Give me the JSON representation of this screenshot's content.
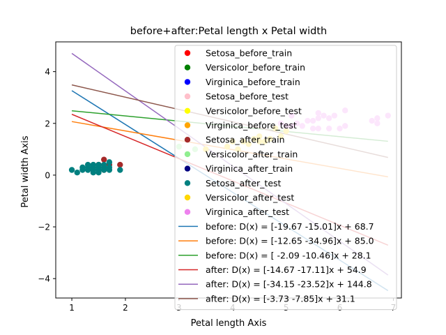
{
  "chart_data": {
    "type": "scatter",
    "title": "before+after:Petal length x Petal width",
    "xlabel": "Petal length Axis",
    "ylabel": "Petal width Axis",
    "xlim": [
      0.7,
      7.15
    ],
    "ylim": [
      -4.75,
      5.15
    ],
    "xticks": [
      1,
      2,
      3,
      4,
      5,
      6,
      7
    ],
    "yticks": [
      -4,
      -2,
      0,
      2,
      4
    ],
    "grid": false,
    "legend_position": "top-right",
    "scatter_series": [
      {
        "name": "Setosa_before_train",
        "color": "#ff0000",
        "points": []
      },
      {
        "name": "Versicolor_before_train",
        "color": "#008000",
        "points": []
      },
      {
        "name": "Virginica_before_train",
        "color": "#0000ff",
        "points": []
      },
      {
        "name": "Setosa_before_test",
        "color": "#ffc0cb",
        "points": []
      },
      {
        "name": "Versicolor_before_test",
        "color": "#ffff00",
        "points": []
      },
      {
        "name": "Virginica_before_test",
        "color": "#ffa500",
        "points": []
      },
      {
        "name": "Setosa_after_train",
        "color": "#a52a2a",
        "points": [
          [
            1.6,
            0.6
          ],
          [
            1.9,
            0.4
          ],
          [
            1.5,
            0.4
          ],
          [
            1.7,
            0.4
          ],
          [
            1.6,
            0.2
          ],
          [
            1.4,
            0.3
          ]
        ]
      },
      {
        "name": "Versicolor_after_train",
        "color": "#90ee90",
        "points": [
          [
            3.0,
            1.1
          ],
          [
            3.3,
            1.0
          ]
        ]
      },
      {
        "name": "Virginica_after_train",
        "color": "#000080",
        "points": []
      },
      {
        "name": "Setosa_after_test",
        "color": "#008080",
        "points": [
          [
            1.0,
            0.2
          ],
          [
            1.1,
            0.1
          ],
          [
            1.2,
            0.2
          ],
          [
            1.3,
            0.2
          ],
          [
            1.3,
            0.4
          ],
          [
            1.3,
            0.3
          ],
          [
            1.4,
            0.2
          ],
          [
            1.4,
            0.1
          ],
          [
            1.4,
            0.3
          ],
          [
            1.5,
            0.2
          ],
          [
            1.5,
            0.1
          ],
          [
            1.5,
            0.4
          ],
          [
            1.5,
            0.3
          ],
          [
            1.6,
            0.2
          ],
          [
            1.6,
            0.4
          ],
          [
            1.7,
            0.2
          ],
          [
            1.7,
            0.3
          ],
          [
            1.7,
            0.5
          ],
          [
            1.9,
            0.2
          ],
          [
            1.2,
            0.3
          ],
          [
            1.4,
            0.4
          ],
          [
            1.6,
            0.3
          ]
        ]
      },
      {
        "name": "Versicolor_after_test",
        "color": "#ffd700",
        "points": [
          [
            3.5,
            1.0
          ],
          [
            3.9,
            1.1
          ],
          [
            4.0,
            1.3
          ],
          [
            4.1,
            1.0
          ],
          [
            4.2,
            1.3
          ],
          [
            4.4,
            1.4
          ],
          [
            4.5,
            1.5
          ],
          [
            4.6,
            1.3
          ],
          [
            4.7,
            1.4
          ],
          [
            4.8,
            1.8
          ],
          [
            4.9,
            1.5
          ],
          [
            5.0,
            1.7
          ],
          [
            4.3,
            1.2
          ],
          [
            4.5,
            1.3
          ]
        ]
      },
      {
        "name": "Virginica_after_test",
        "color": "#ee82ee",
        "points": [
          [
            4.9,
            2.0
          ],
          [
            5.0,
            1.9
          ],
          [
            5.1,
            2.3
          ],
          [
            5.2,
            2.0
          ],
          [
            5.3,
            1.9
          ],
          [
            5.5,
            2.1
          ],
          [
            5.6,
            2.4
          ],
          [
            5.6,
            1.8
          ],
          [
            5.7,
            2.3
          ],
          [
            5.8,
            1.8
          ],
          [
            5.8,
            2.2
          ],
          [
            5.9,
            2.3
          ],
          [
            6.0,
            1.8
          ],
          [
            6.1,
            2.5
          ],
          [
            6.6,
            2.1
          ],
          [
            6.7,
            2.2
          ],
          [
            6.9,
            2.3
          ],
          [
            5.4,
            2.1
          ],
          [
            6.1,
            1.9
          ],
          [
            5.5,
            1.8
          ],
          [
            6.7,
            2.0
          ],
          [
            5.1,
            1.9
          ],
          [
            5.6,
            2.2
          ]
        ]
      }
    ],
    "decision_lines": [
      {
        "name": "before: D(x) = [-19.67 -15.01]x + 68.7",
        "color": "#1f77b4",
        "w1": -19.67,
        "w2": -15.01,
        "b": 68.7
      },
      {
        "name": "before: D(x) = [-12.65 -34.96]x + 85.0",
        "color": "#ff7f0e",
        "w1": -12.65,
        "w2": -34.96,
        "b": 85.0
      },
      {
        "name": "before: D(x) = [ -2.09 -10.46]x + 28.1",
        "color": "#2ca02c",
        "w1": -2.09,
        "w2": -10.46,
        "b": 28.1
      },
      {
        "name": "after: D(x) = [-14.67 -17.11]x + 54.9",
        "color": "#d62728",
        "w1": -14.67,
        "w2": -17.11,
        "b": 54.9
      },
      {
        "name": "after: D(x) = [-34.15 -23.52]x + 144.8",
        "color": "#9467bd",
        "w1": -34.15,
        "w2": -23.52,
        "b": 144.8
      },
      {
        "name": "after: D(x) = [-3.73 -7.85]x + 31.1",
        "color": "#8c564b",
        "w1": -3.73,
        "w2": -7.85,
        "b": 31.1
      }
    ],
    "line_x_range": [
      1.0,
      6.9
    ]
  }
}
